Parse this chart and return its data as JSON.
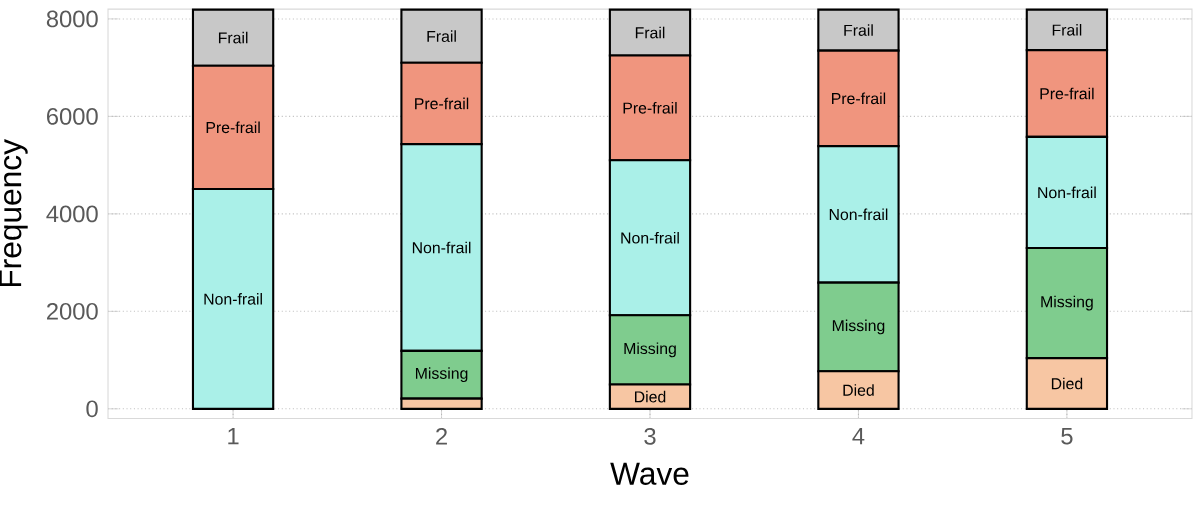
{
  "chart_data": {
    "type": "bar",
    "stacked": true,
    "xlabel": "Wave",
    "ylabel": "Frequency",
    "categories": [
      "1",
      "2",
      "3",
      "4",
      "5"
    ],
    "series": [
      {
        "name": "Died",
        "color": "#f7c6a3",
        "values": [
          0,
          210,
          500,
          770,
          1040
        ]
      },
      {
        "name": "Missing",
        "color": "#7fcc8e",
        "values": [
          0,
          980,
          1420,
          1820,
          2260
        ]
      },
      {
        "name": "Non-frail",
        "color": "#aaf0e8",
        "values": [
          4510,
          4240,
          3180,
          2800,
          2280
        ]
      },
      {
        "name": "Pre-frail",
        "color": "#f0957e",
        "values": [
          2530,
          1670,
          2150,
          1960,
          1780
        ]
      },
      {
        "name": "Frail",
        "color": "#c8c8c8",
        "values": [
          1150,
          1090,
          940,
          840,
          830
        ]
      }
    ],
    "ylim": [
      -200,
      8200
    ],
    "yticks": [
      0,
      2000,
      4000,
      6000,
      8000
    ],
    "grid": true
  }
}
